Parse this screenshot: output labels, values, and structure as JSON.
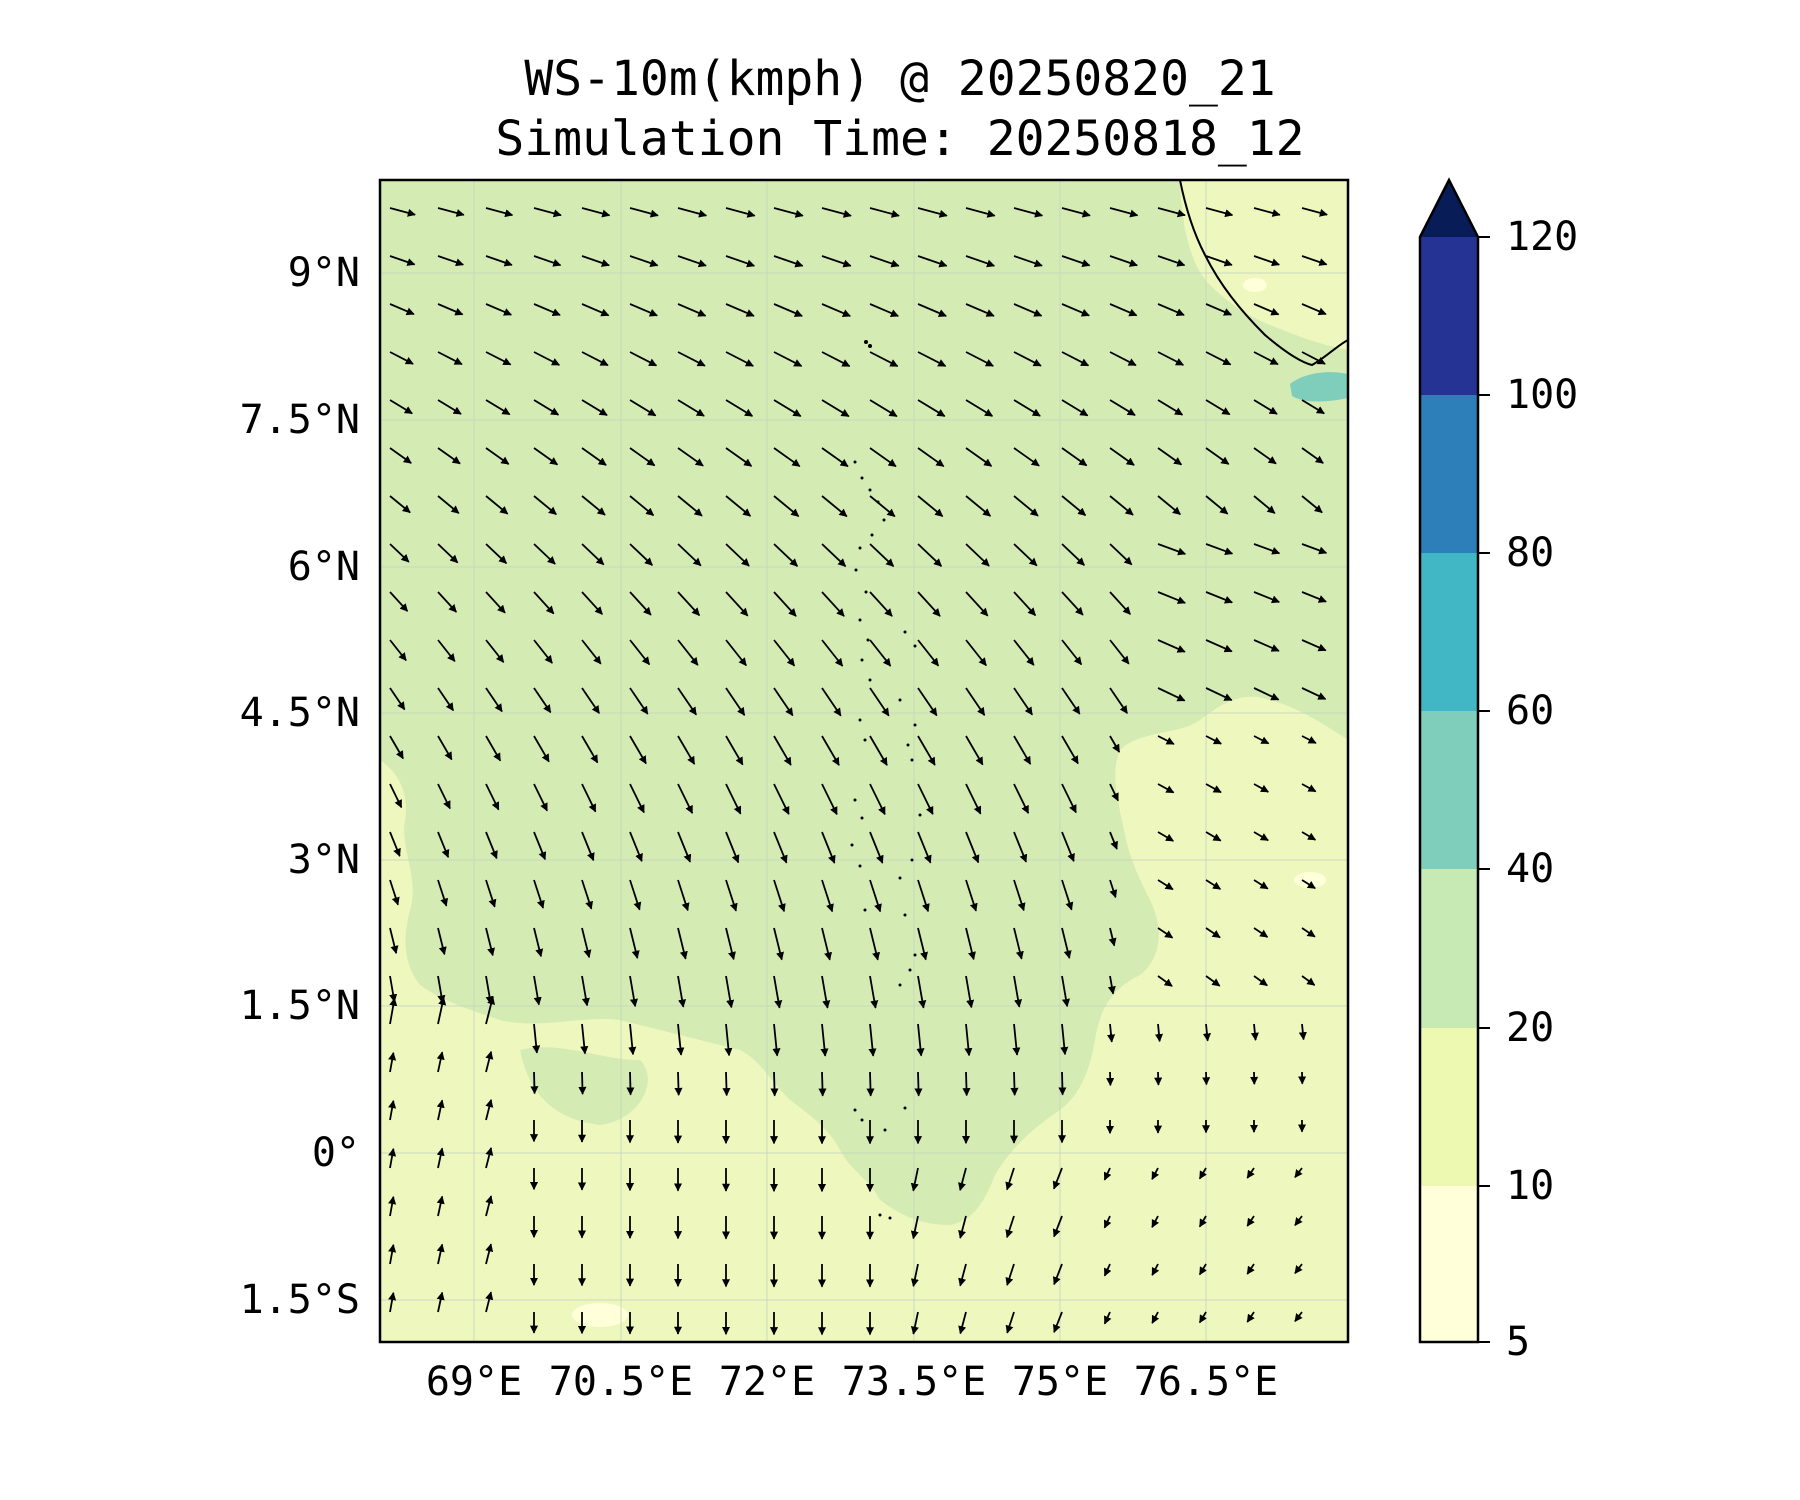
{
  "title": {
    "line1": "WS-10m(kmph) @ 20250820_21",
    "line2": "Simulation Time: 20250818_12"
  },
  "map": {
    "lat_ticks": [
      "9°N",
      "7.5°N",
      "6°N",
      "4.5°N",
      "3°N",
      "1.5°N",
      "0°",
      "1.5°S"
    ],
    "lon_ticks": [
      "69°E",
      "70.5°E",
      "72°E",
      "73.5°E",
      "75°E",
      "76.5°E"
    ],
    "gridlines": true,
    "coastline": true,
    "wind_vectors": true
  },
  "colorbar": {
    "ticks": [
      "120",
      "100",
      "80",
      "60",
      "40",
      "20",
      "10",
      "5"
    ],
    "levels": [
      5,
      10,
      20,
      40,
      60,
      80,
      100,
      120
    ],
    "colors": [
      "#ffffd9",
      "#edf8b1",
      "#c7e9b4",
      "#7fcdbb",
      "#41b6c4",
      "#2c7fb8",
      "#253494",
      "#081d58"
    ],
    "extend": "max"
  }
}
